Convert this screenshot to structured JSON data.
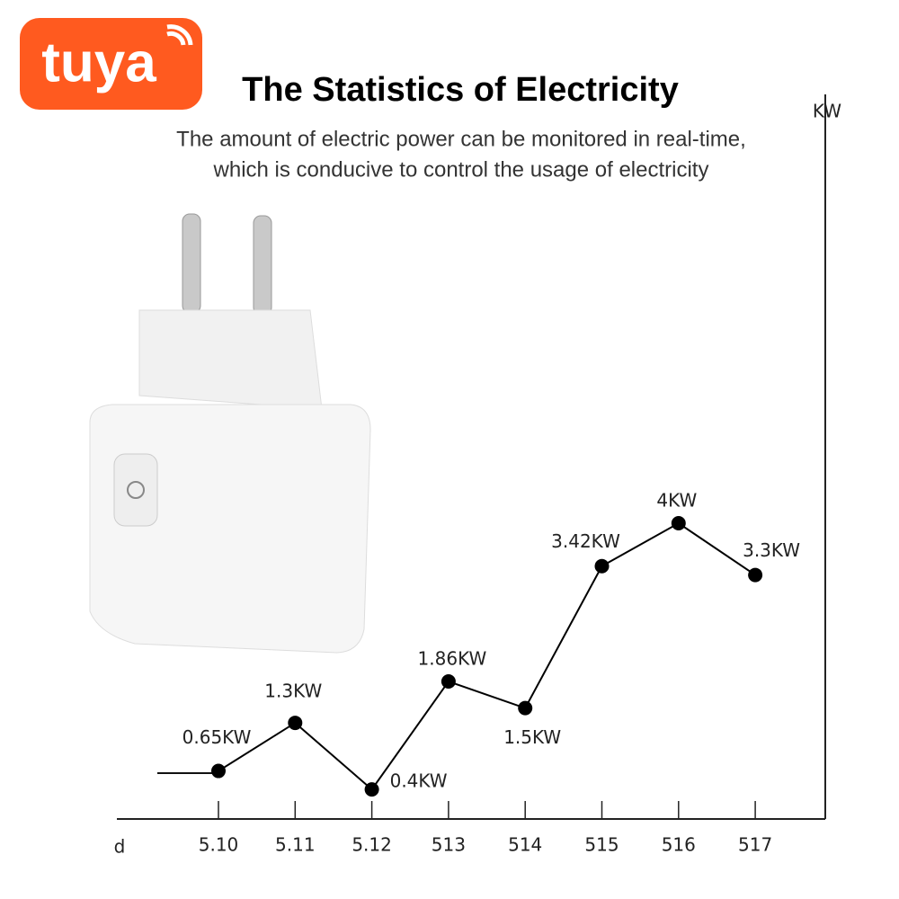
{
  "brand": "tuya",
  "chart_data": {
    "type": "line",
    "title": "The Statistics of Electricity",
    "subtitle": [
      "The amount of electric power can be monitored in real-time,",
      "which is conducive to control the usage of electricity"
    ],
    "x_label": "d",
    "y_label": "KW",
    "categories": [
      "5.10",
      "5.11",
      "5.12",
      "513",
      "514",
      "515",
      "516",
      "517"
    ],
    "values": [
      0.65,
      1.3,
      0.4,
      1.86,
      1.5,
      3.42,
      4,
      3.3
    ],
    "value_labels": [
      "0.65KW",
      "1.3KW",
      "0.4KW",
      "1.86KW",
      "1.5KW",
      "3.42KW",
      "4KW",
      "3.3KW"
    ],
    "ylim": [
      0,
      9.8
    ],
    "color": "#000000"
  }
}
